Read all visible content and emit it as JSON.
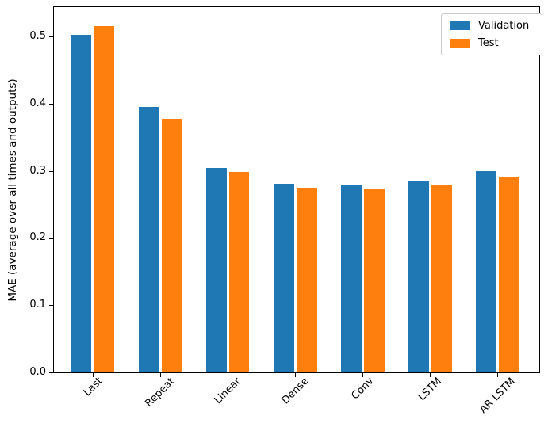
{
  "chart_data": {
    "type": "bar",
    "title": "",
    "xlabel": "",
    "ylabel": "MAE (average over all times and outputs)",
    "categories": [
      "Last",
      "Repeat",
      "Linear",
      "Dense",
      "Conv",
      "LSTM",
      "AR LSTM"
    ],
    "series": [
      {
        "name": "Validation",
        "color": "#1f77b4",
        "values": [
          0.503,
          0.396,
          0.306,
          0.282,
          0.281,
          0.286,
          0.301
        ]
      },
      {
        "name": "Test",
        "color": "#ff7f0e",
        "values": [
          0.517,
          0.378,
          0.299,
          0.276,
          0.274,
          0.279,
          0.293
        ]
      }
    ],
    "yticks": [
      0.0,
      0.1,
      0.2,
      0.3,
      0.4,
      0.5
    ],
    "ylim": [
      0,
      0.546
    ],
    "xlim": [
      -0.59,
      6.63
    ],
    "bar_width_frac": 0.3,
    "bar_offset_frac": 0.17,
    "grid": false,
    "legend_position": "upper right",
    "legend_labels": [
      "Validation",
      "Test"
    ]
  }
}
